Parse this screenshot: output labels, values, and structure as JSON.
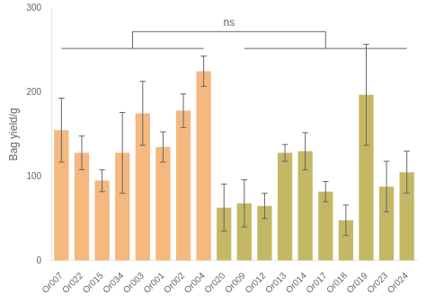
{
  "chart_data": {
    "type": "bar",
    "categories": [
      "Or007",
      "Or022",
      "Or015",
      "Or034",
      "Or003",
      "Or001",
      "Or002",
      "Or004",
      "Or020",
      "Or009",
      "Or012",
      "Or013",
      "Or014",
      "Or017",
      "Or018",
      "Or019",
      "Or023",
      "Or024"
    ],
    "values": [
      155,
      128,
      95,
      128,
      175,
      135,
      178,
      225,
      63,
      68,
      65,
      128,
      130,
      82,
      48,
      197,
      88,
      105
    ],
    "errors": [
      38,
      20,
      13,
      48,
      38,
      18,
      20,
      18,
      28,
      28,
      15,
      10,
      22,
      12,
      18,
      60,
      30,
      25
    ],
    "colors": [
      "#F5B87F",
      "#F5B87F",
      "#F5B87F",
      "#F5B87F",
      "#F5B87F",
      "#F5B87F",
      "#F5B87F",
      "#F5B87F",
      "#C4B865",
      "#C4B865",
      "#C4B865",
      "#C4B865",
      "#C4B865",
      "#C4B865",
      "#C4B865",
      "#C4B865",
      "#C4B865",
      "#C4B865"
    ],
    "ylabel": "Bag yield/g",
    "ylim": [
      0,
      300
    ],
    "yticks": [
      0,
      100,
      200,
      300
    ],
    "grid": false,
    "annotations": [
      {
        "text": "ns",
        "groups": [
          [
            "Or007",
            "Or004"
          ],
          [
            "Or009",
            "Or024"
          ]
        ],
        "y": [
          252,
          272
        ],
        "text_y": 276
      }
    ]
  }
}
